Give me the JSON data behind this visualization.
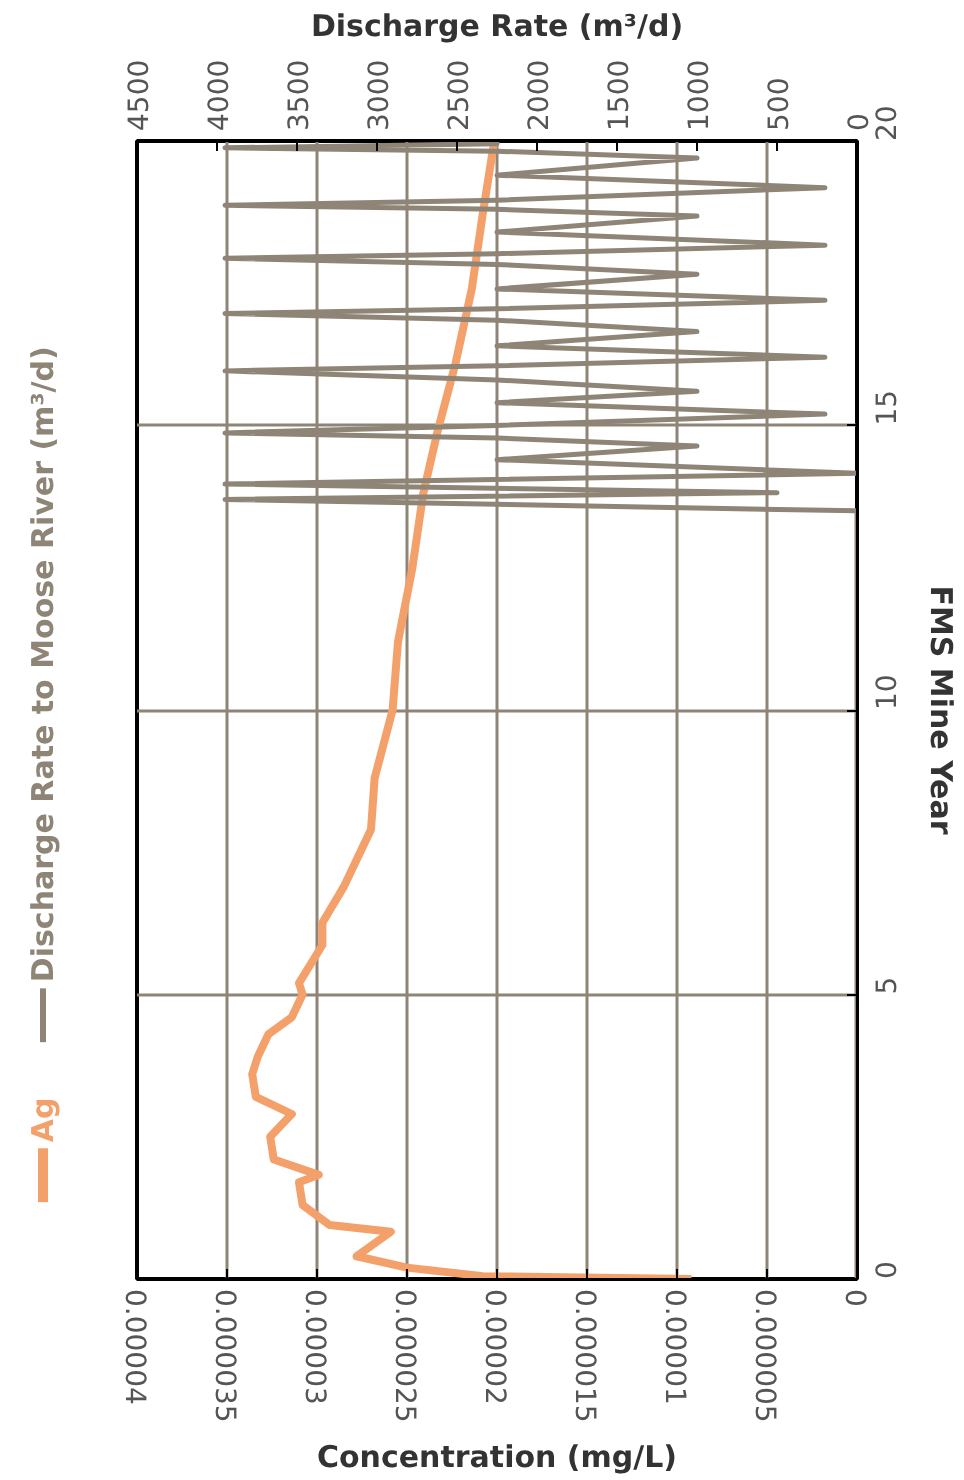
{
  "chart_data": {
    "type": "line",
    "xlabel": "Concentration (mg/L)",
    "x2label": "Discharge Rate (m³/d)",
    "ylabel": "FMS Mine Year",
    "xlim": [
      4e-05,
      0
    ],
    "xticks": [
      {
        "value": 4e-05,
        "label": "0.00004"
      },
      {
        "value": 3.5e-05,
        "label": "0.000035"
      },
      {
        "value": 3e-05,
        "label": "0.00003"
      },
      {
        "value": 2.5e-05,
        "label": "0.000025"
      },
      {
        "value": 2e-05,
        "label": "0.00002"
      },
      {
        "value": 1.5e-05,
        "label": "0.000015"
      },
      {
        "value": 1e-05,
        "label": "0.00001"
      },
      {
        "value": 5e-06,
        "label": "0.000005"
      },
      {
        "value": 0,
        "label": "0"
      }
    ],
    "x2lim": [
      4500,
      0
    ],
    "x2ticks": [
      4500,
      4000,
      3500,
      3000,
      2500,
      2000,
      1500,
      1000,
      500,
      0
    ],
    "ylim": [
      0,
      20
    ],
    "yticks": [
      0,
      5,
      10,
      15,
      20
    ],
    "grid": true,
    "legend": "left",
    "marker": "none",
    "line_style": "solid",
    "series": [
      {
        "name": "Ag",
        "color": "#f4a06b",
        "x": [
          9.2e-06,
          2.08e-05,
          2.5e-05,
          2.78e-05,
          2.59e-05,
          2.93e-05,
          3.08e-05,
          3.1e-05,
          2.99e-05,
          3.24e-05,
          3.26e-05,
          3.14e-05,
          3.34e-05,
          3.36e-05,
          3.33e-05,
          3.27e-05,
          3.14e-05,
          3.08e-05,
          3.1e-05,
          2.97e-05,
          2.97e-05,
          2.85e-05,
          2.7e-05,
          2.68e-05,
          2.58e-05,
          2.55e-05,
          2.47e-05,
          2.41e-05,
          2.33e-05,
          2.23e-05,
          2.14e-05,
          2.08e-05,
          2.02e-05,
          2.02e-05
        ],
        "values": [
          0,
          0.05,
          0.2,
          0.4,
          0.83,
          0.95,
          1.3,
          1.7,
          1.83,
          2.1,
          2.5,
          2.9,
          3.2,
          3.6,
          3.9,
          4.3,
          4.6,
          5.0,
          5.2,
          5.87,
          6.26,
          6.9,
          7.9,
          8.8,
          10,
          11.2,
          12.5,
          13.8,
          14.9,
          16.1,
          17.4,
          18.7,
          19.9,
          20
        ]
      },
      {
        "name": "Discharge Rate to Moose River (m³/d)",
        "color": "#8e8576",
        "axis": "x2",
        "x": [
          0,
          0,
          3950,
          500,
          3950,
          0,
          2250,
          1000,
          2250,
          3950,
          2250,
          200,
          2250,
          1000,
          2250,
          3950,
          2250,
          200,
          2250,
          1000,
          2250,
          3950,
          2250,
          200,
          2250,
          1000,
          2250,
          3950,
          2250,
          200,
          2250,
          1000,
          2250,
          3950,
          2250,
          200,
          2250,
          1000,
          2250,
          3950,
          2250,
          2250
        ],
        "values": [
          0,
          13.5,
          13.7,
          13.82,
          13.97,
          14.16,
          14.4,
          14.64,
          14.78,
          14.87,
          15.0,
          15.2,
          15.4,
          15.6,
          15.8,
          15.96,
          16.05,
          16.2,
          16.4,
          16.65,
          16.85,
          16.97,
          17.05,
          17.2,
          17.4,
          17.66,
          17.83,
          17.94,
          18.02,
          18.17,
          18.4,
          18.68,
          18.8,
          18.87,
          18.96,
          19.18,
          19.4,
          19.7,
          19.82,
          19.88,
          19.95,
          20
        ]
      }
    ]
  }
}
